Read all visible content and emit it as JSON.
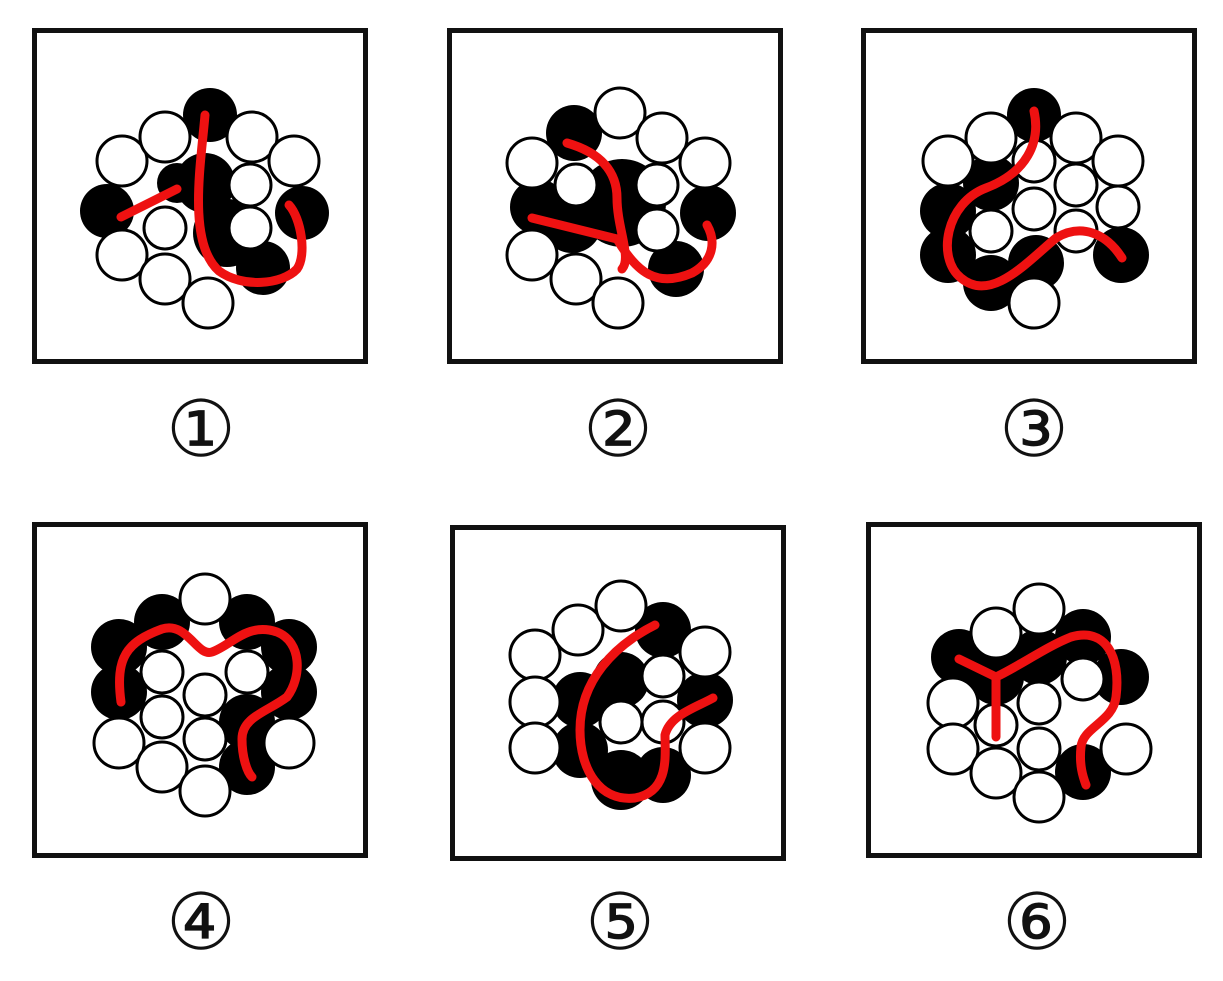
{
  "panels": [
    {
      "label": "①"
    },
    {
      "label": "②"
    },
    {
      "label": "③"
    },
    {
      "label": "④"
    },
    {
      "label": "⑤"
    },
    {
      "label": "⑥"
    }
  ],
  "colors": {
    "path": "#ee1111",
    "hole": "#000000",
    "ball": "#ffffff",
    "frame": "#111111"
  }
}
